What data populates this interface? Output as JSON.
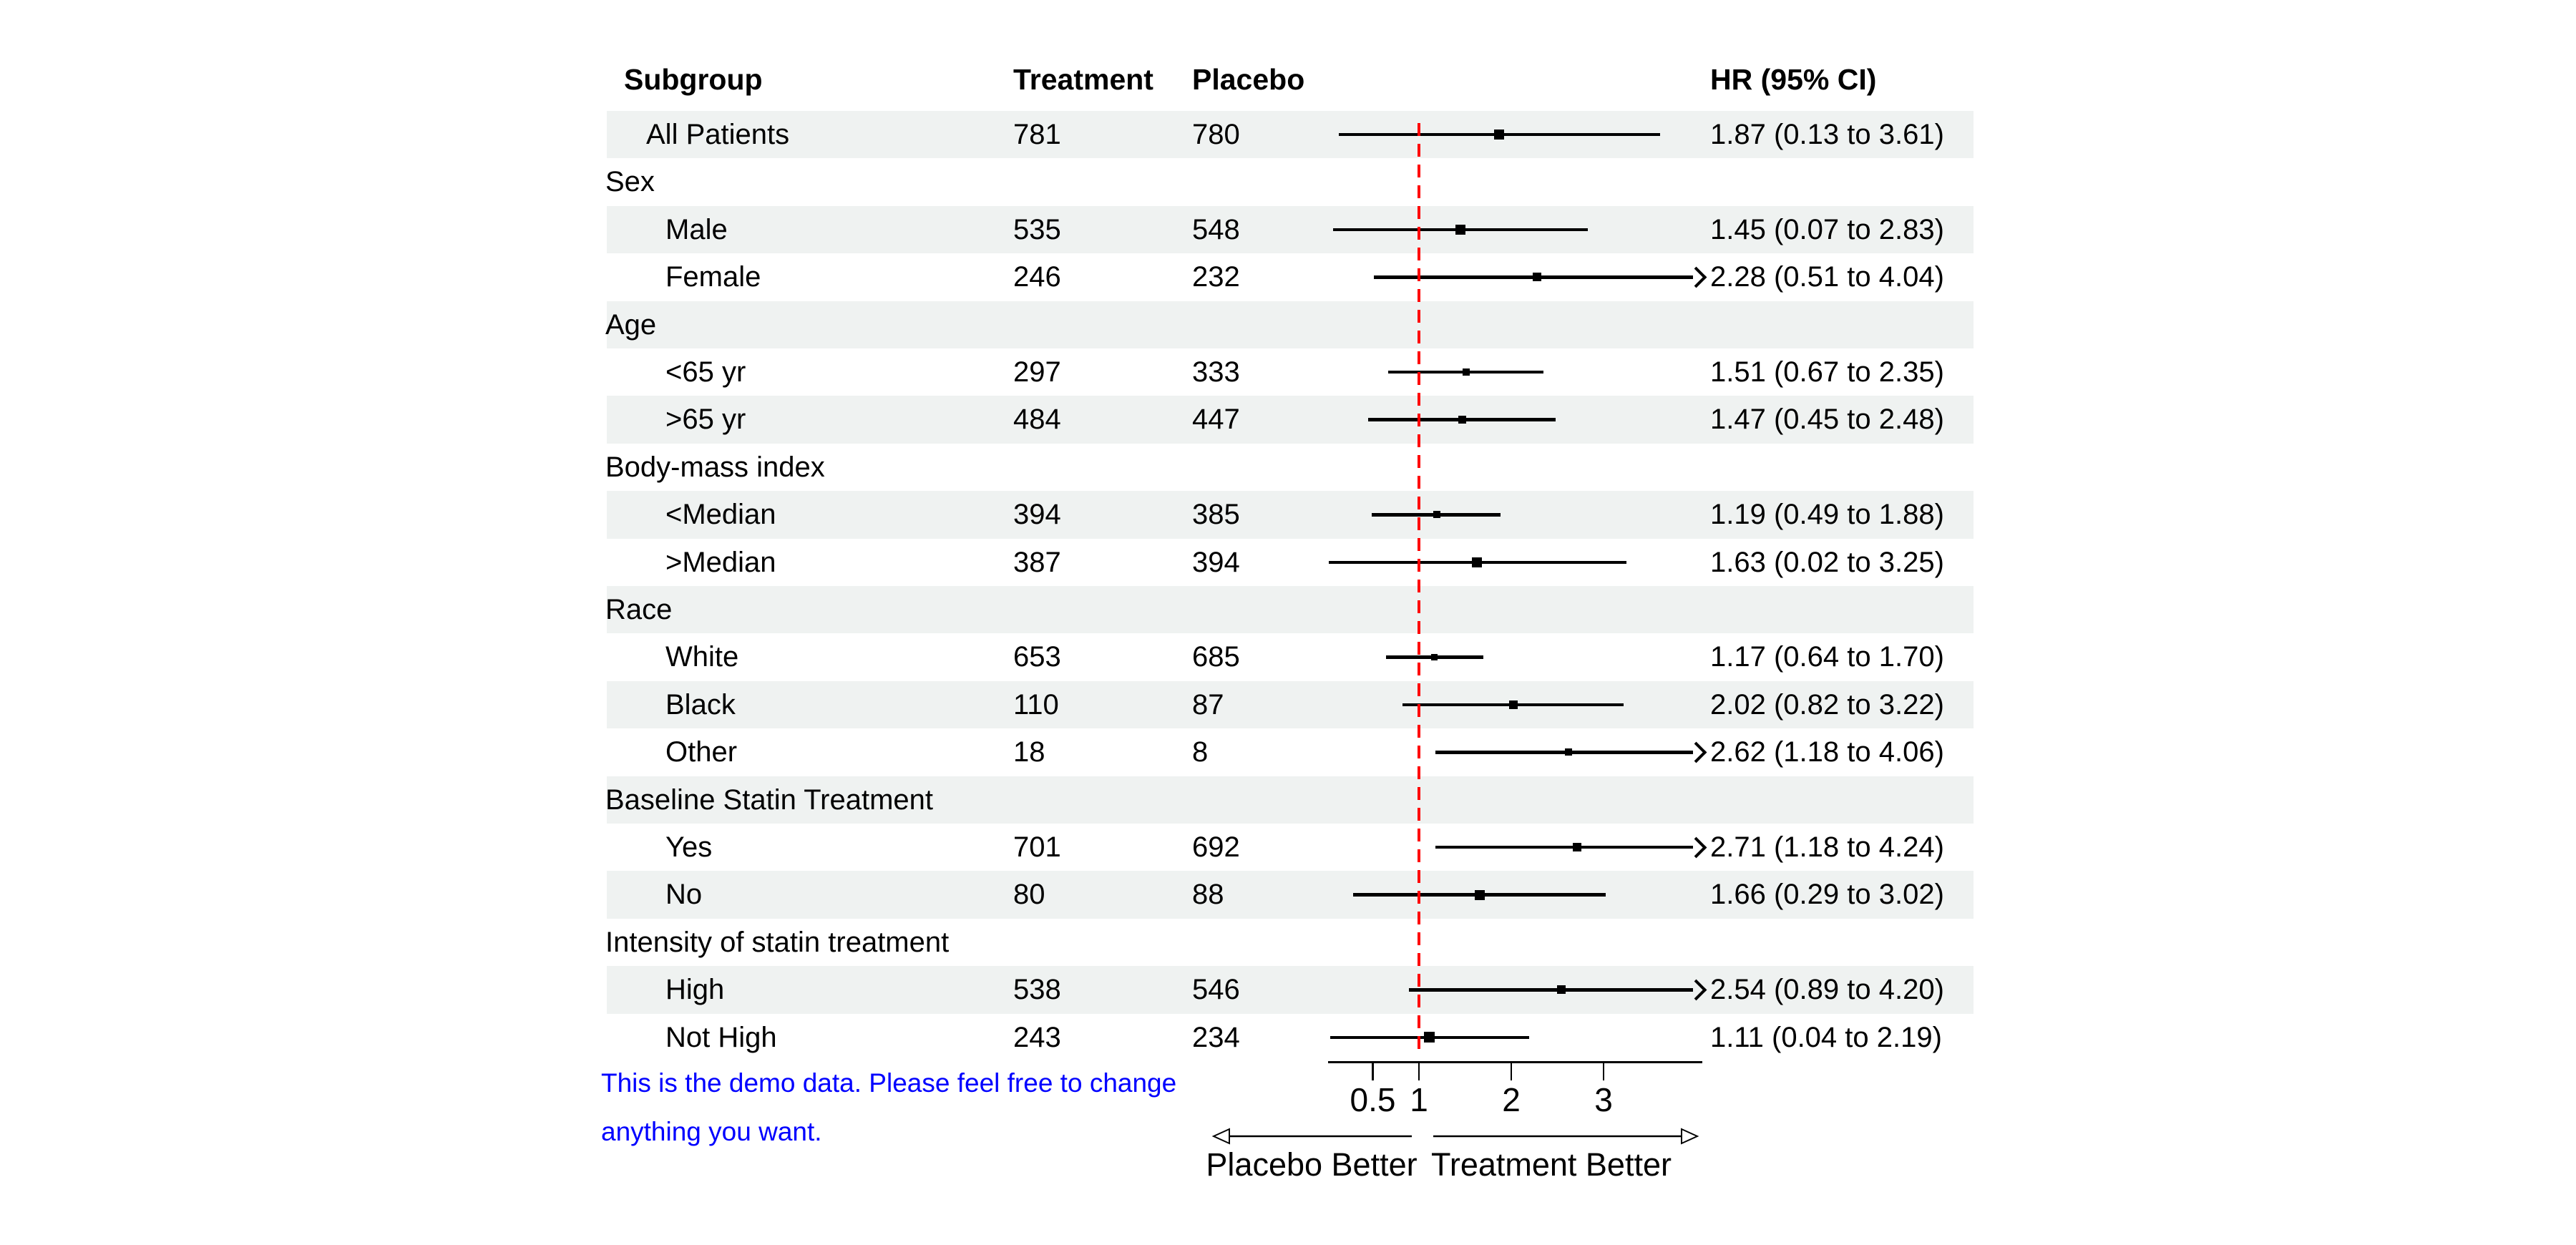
{
  "header": {
    "subgroup": "Subgroup",
    "treatment": "Treatment",
    "placebo": "Placebo",
    "hr": "HR (95% CI)"
  },
  "direction_labels": {
    "left": "Placebo Better",
    "right": "Treatment Better"
  },
  "note": {
    "line1": "This is the demo data. Please feel free to change",
    "line2": "anything you want."
  },
  "colors": {
    "band": "#EFF2F1",
    "ref_line": "#FF0000",
    "note_text": "#0000FF",
    "text": "#000000"
  },
  "chart_data": {
    "type": "forest",
    "title": "",
    "x_axis": {
      "scale": "linear",
      "ticks": [
        0.5,
        1,
        2,
        3
      ],
      "tick_labels": [
        "0.5",
        "1",
        "2",
        "3"
      ],
      "range": [
        0.0,
        4.07
      ],
      "reference_line": 1,
      "arrow_clip": 4.0
    },
    "columns": [
      "Subgroup",
      "Treatment",
      "Placebo",
      "HR (95% CI)"
    ],
    "rows": [
      {
        "label": "All Patients",
        "indent": 1,
        "group": false,
        "treatment": "781",
        "placebo": "780",
        "hr": 1.87,
        "lo": 0.13,
        "hi": 3.61,
        "hr_text": "1.87 (0.13 to 3.61)",
        "arrow": false,
        "marker": 14
      },
      {
        "label": "Sex",
        "indent": 0,
        "group": true
      },
      {
        "label": "Male",
        "indent": 2,
        "group": false,
        "treatment": "535",
        "placebo": "548",
        "hr": 1.45,
        "lo": 0.07,
        "hi": 2.83,
        "hr_text": "1.45 (0.07 to 2.83)",
        "arrow": false,
        "marker": 14
      },
      {
        "label": "Female",
        "indent": 2,
        "group": false,
        "treatment": "246",
        "placebo": "232",
        "hr": 2.28,
        "lo": 0.51,
        "hi": 4.04,
        "hr_text": "2.28 (0.51 to 4.04)",
        "arrow": true,
        "marker": 12
      },
      {
        "label": "Age",
        "indent": 0,
        "group": true
      },
      {
        "label": "<65 yr",
        "indent": 2,
        "group": false,
        "treatment": "297",
        "placebo": "333",
        "hr": 1.51,
        "lo": 0.67,
        "hi": 2.35,
        "hr_text": "1.51 (0.67 to 2.35)",
        "arrow": false,
        "marker": 10
      },
      {
        "label": ">65 yr",
        "indent": 2,
        "group": false,
        "treatment": "484",
        "placebo": "447",
        "hr": 1.47,
        "lo": 0.45,
        "hi": 2.48,
        "hr_text": "1.47 (0.45 to 2.48)",
        "arrow": false,
        "marker": 11
      },
      {
        "label": "Body-mass index",
        "indent": 0,
        "group": true
      },
      {
        "label": "<Median",
        "indent": 2,
        "group": false,
        "treatment": "394",
        "placebo": "385",
        "hr": 1.19,
        "lo": 0.49,
        "hi": 1.88,
        "hr_text": "1.19 (0.49 to 1.88)",
        "arrow": false,
        "marker": 10
      },
      {
        "label": ">Median",
        "indent": 2,
        "group": false,
        "treatment": "387",
        "placebo": "394",
        "hr": 1.63,
        "lo": 0.02,
        "hi": 3.25,
        "hr_text": "1.63 (0.02 to 3.25)",
        "arrow": false,
        "marker": 14
      },
      {
        "label": "Race",
        "indent": 0,
        "group": true
      },
      {
        "label": "White",
        "indent": 2,
        "group": false,
        "treatment": "653",
        "placebo": "685",
        "hr": 1.17,
        "lo": 0.64,
        "hi": 1.7,
        "hr_text": "1.17 (0.64 to 1.70)",
        "arrow": false,
        "marker": 9
      },
      {
        "label": "Black",
        "indent": 2,
        "group": false,
        "treatment": "110",
        "placebo": "87",
        "hr": 2.02,
        "lo": 0.82,
        "hi": 3.22,
        "hr_text": "2.02 (0.82 to 3.22)",
        "arrow": false,
        "marker": 12
      },
      {
        "label": "Other",
        "indent": 2,
        "group": false,
        "treatment": "18",
        "placebo": "8",
        "hr": 2.62,
        "lo": 1.18,
        "hi": 4.06,
        "hr_text": "2.62 (1.18 to 4.06)",
        "arrow": true,
        "marker": 10
      },
      {
        "label": "Baseline Statin Treatment",
        "indent": 0,
        "group": true
      },
      {
        "label": "Yes",
        "indent": 2,
        "group": false,
        "treatment": "701",
        "placebo": "692",
        "hr": 2.71,
        "lo": 1.18,
        "hi": 4.24,
        "hr_text": "2.71 (1.18 to 4.24)",
        "arrow": true,
        "marker": 12
      },
      {
        "label": "No",
        "indent": 2,
        "group": false,
        "treatment": "80",
        "placebo": "88",
        "hr": 1.66,
        "lo": 0.29,
        "hi": 3.02,
        "hr_text": "1.66 (0.29 to 3.02)",
        "arrow": false,
        "marker": 14
      },
      {
        "label": "Intensity of statin treatment",
        "indent": 0,
        "group": true
      },
      {
        "label": "High",
        "indent": 2,
        "group": false,
        "treatment": "538",
        "placebo": "546",
        "hr": 2.54,
        "lo": 0.89,
        "hi": 4.2,
        "hr_text": "2.54 (0.89 to 4.20)",
        "arrow": true,
        "marker": 12
      },
      {
        "label": "Not High",
        "indent": 2,
        "group": false,
        "treatment": "243",
        "placebo": "234",
        "hr": 1.11,
        "lo": 0.04,
        "hi": 2.19,
        "hr_text": "1.11 (0.04 to 2.19)",
        "arrow": false,
        "marker": 15
      }
    ]
  }
}
